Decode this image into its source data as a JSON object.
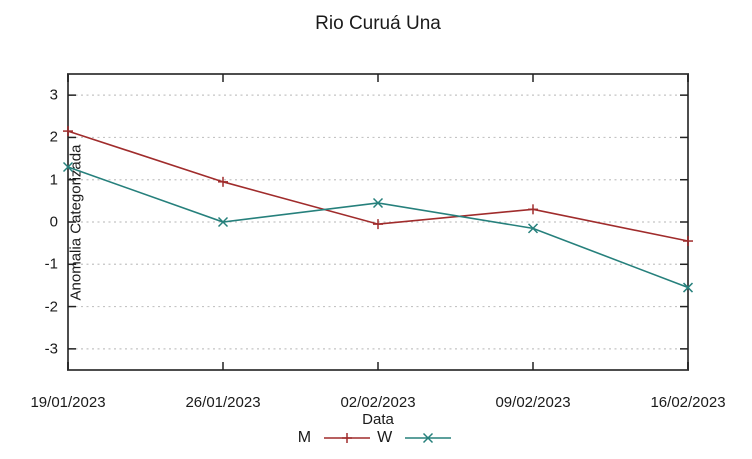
{
  "chart_data": {
    "type": "line",
    "title": "Rio Curuá Una",
    "xlabel": "Data",
    "ylabel": "Anomalia Categorizada",
    "categories": [
      "19/01/2023",
      "26/01/2023",
      "02/02/2023",
      "09/02/2023",
      "16/02/2023"
    ],
    "series": [
      {
        "name": "M",
        "color": "#a02c2c",
        "marker": "plus",
        "values": [
          2.15,
          0.95,
          -0.05,
          0.3,
          -0.45
        ]
      },
      {
        "name": "W",
        "color": "#26807c",
        "marker": "cross",
        "values": [
          1.3,
          0.0,
          0.45,
          -0.15,
          -1.55
        ]
      }
    ],
    "ylim": [
      -3.5,
      3.5
    ],
    "yticks": [
      3,
      2,
      1,
      0,
      -1,
      -2,
      -3
    ],
    "grid": "horizontal-dotted",
    "legend_position": "bottom-center",
    "style": {
      "border_color": "#4d4d4d",
      "grid_color": "#c4c4c4",
      "tick_color": "#222222"
    }
  }
}
